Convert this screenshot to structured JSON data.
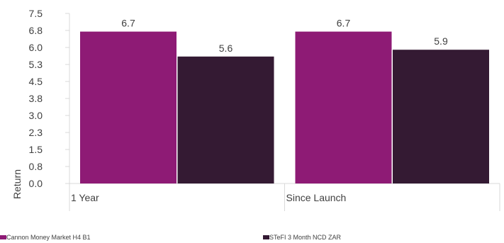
{
  "chart_data": {
    "type": "bar",
    "categories": [
      "1 Year",
      "Since Launch"
    ],
    "series": [
      {
        "name": "Cannon Money Market H4 B1",
        "values": [
          6.7,
          6.7
        ],
        "color": "#8E1B75"
      },
      {
        "name": "STeFI 3 Month NCD ZAR",
        "values": [
          5.6,
          5.9
        ],
        "color": "#341A33"
      }
    ],
    "data_labels": [
      [
        "6.7",
        "6.7"
      ],
      [
        "5.6",
        "5.9"
      ]
    ],
    "ylabel": "Return",
    "xlabel": "",
    "title": "",
    "ylim": [
      0,
      7.5
    ],
    "yticks": [
      "0.0",
      "0.8",
      "1.5",
      "2.3",
      "3.0",
      "3.8",
      "4.5",
      "5.3",
      "6.0",
      "6.8",
      "7.5"
    ],
    "grid": false,
    "legend_position": "bottom"
  }
}
